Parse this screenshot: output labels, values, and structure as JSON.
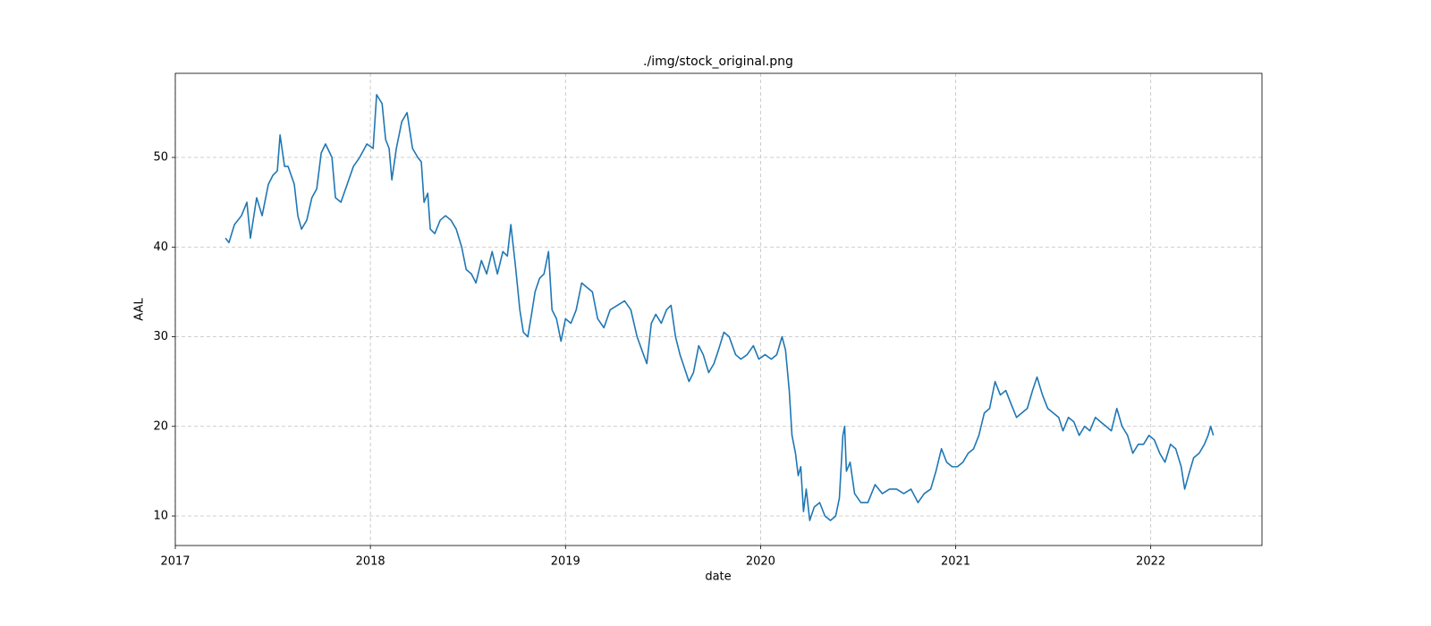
{
  "chart_data": {
    "type": "line",
    "title": "./img/stock_original.png",
    "xlabel": "date",
    "ylabel": "AAL",
    "x": [
      2017.257,
      2017.275,
      2017.303,
      2017.339,
      2017.367,
      2017.385,
      2017.417,
      2017.445,
      2017.477,
      2017.5,
      2017.523,
      2017.537,
      2017.56,
      2017.578,
      2017.61,
      2017.628,
      2017.647,
      2017.674,
      2017.7,
      2017.725,
      2017.748,
      2017.77,
      2017.803,
      2017.821,
      2017.849,
      2017.881,
      2017.913,
      2017.945,
      2017.982,
      2018.014,
      2018.032,
      2018.06,
      2018.078,
      2018.096,
      2018.11,
      2018.133,
      2018.161,
      2018.188,
      2018.216,
      2018.243,
      2018.261,
      2018.275,
      2018.294,
      2018.307,
      2018.33,
      2018.358,
      2018.385,
      2018.413,
      2018.44,
      2018.468,
      2018.491,
      2018.518,
      2018.541,
      2018.569,
      2018.596,
      2018.624,
      2018.651,
      2018.679,
      2018.702,
      2018.72,
      2018.743,
      2018.766,
      2018.784,
      2018.807,
      2018.826,
      2018.844,
      2018.867,
      2018.89,
      2018.913,
      2018.931,
      2018.954,
      2018.977,
      2019.0,
      2019.028,
      2019.055,
      2019.083,
      2019.11,
      2019.138,
      2019.165,
      2019.197,
      2019.229,
      2019.266,
      2019.303,
      2019.335,
      2019.367,
      2019.4,
      2019.417,
      2019.44,
      2019.463,
      2019.491,
      2019.518,
      2019.541,
      2019.564,
      2019.587,
      2019.61,
      2019.633,
      2019.656,
      2019.683,
      2019.706,
      2019.734,
      2019.761,
      2019.784,
      2019.812,
      2019.839,
      2019.872,
      2019.899,
      2019.931,
      2019.963,
      2019.991,
      2020.023,
      2020.055,
      2020.083,
      2020.11,
      2020.128,
      2020.147,
      2020.161,
      2020.179,
      2020.193,
      2020.206,
      2020.22,
      2020.234,
      2020.252,
      2020.275,
      2020.303,
      2020.33,
      2020.358,
      2020.385,
      2020.404,
      2020.422,
      2020.431,
      2020.44,
      2020.459,
      2020.482,
      2020.514,
      2020.55,
      2020.587,
      2020.624,
      2020.661,
      2020.697,
      2020.734,
      2020.771,
      2020.807,
      2020.839,
      2020.872,
      2020.899,
      2020.927,
      2020.954,
      2020.982,
      2021.009,
      2021.037,
      2021.064,
      2021.092,
      2021.119,
      2021.147,
      2021.174,
      2021.202,
      2021.229,
      2021.257,
      2021.284,
      2021.312,
      2021.339,
      2021.367,
      2021.394,
      2021.417,
      2021.445,
      2021.472,
      2021.5,
      2021.528,
      2021.55,
      2021.578,
      2021.606,
      2021.633,
      2021.661,
      2021.688,
      2021.716,
      2021.743,
      2021.771,
      2021.798,
      2021.826,
      2021.853,
      2021.881,
      2021.908,
      2021.936,
      2021.963,
      2021.991,
      2022.018,
      2022.046,
      2022.073,
      2022.101,
      2022.128,
      2022.156,
      2022.174,
      2022.193,
      2022.22,
      2022.248,
      2022.275,
      2022.294,
      2022.307,
      2022.321
    ],
    "values": [
      41,
      40.5,
      42.5,
      43.5,
      45,
      41,
      45.5,
      43.5,
      47,
      48,
      48.5,
      52.5,
      49,
      49,
      47,
      43.5,
      42,
      43,
      45.5,
      46.5,
      50.5,
      51.5,
      50,
      45.5,
      45,
      47,
      49,
      50,
      51.5,
      51,
      57,
      56,
      52,
      51,
      47.5,
      51,
      54,
      55,
      51,
      50,
      49.5,
      45,
      46,
      42,
      41.5,
      43,
      43.5,
      43,
      42,
      40,
      37.5,
      37,
      36,
      38.5,
      37,
      39.5,
      37,
      39.5,
      39,
      42.5,
      38,
      33,
      30.5,
      30,
      32.5,
      35,
      36.5,
      37,
      39.5,
      33,
      32,
      29.5,
      32,
      31.5,
      33,
      36,
      35.5,
      35,
      32,
      31,
      33,
      33.5,
      34,
      33,
      30,
      28,
      27,
      31.5,
      32.5,
      31.5,
      33,
      33.5,
      30,
      28,
      26.5,
      25,
      26,
      29,
      28,
      26,
      27,
      28.5,
      30.5,
      30,
      28,
      27.5,
      28,
      29,
      27.5,
      28,
      27.5,
      28,
      30,
      28.5,
      24,
      19,
      17,
      14.5,
      15.5,
      10.5,
      13,
      9.5,
      11,
      11.5,
      10,
      9.5,
      10,
      12,
      19,
      20,
      15,
      16,
      12.5,
      11.5,
      11.5,
      13.5,
      12.5,
      13,
      13,
      12.5,
      13,
      11.5,
      12.5,
      13,
      15,
      17.5,
      16,
      15.5,
      15.5,
      16,
      17,
      17.5,
      19,
      21.5,
      22,
      25,
      23.5,
      24,
      22.5,
      21,
      21.5,
      22,
      24,
      25.5,
      23.5,
      22,
      21.5,
      21,
      19.5,
      21,
      20.5,
      19,
      20,
      19.5,
      21,
      20.5,
      20,
      19.5,
      22,
      20,
      19,
      17,
      18,
      18,
      19,
      18.5,
      17,
      16,
      18,
      17.5,
      15.5,
      13,
      14.5,
      16.5,
      17,
      18,
      19,
      20,
      19
    ],
    "color": "#1f77b4",
    "xlim": [
      2017,
      2022.57
    ],
    "xticks": [
      2017,
      2018,
      2019,
      2020,
      2021,
      2022
    ],
    "ylim": [
      6.71,
      59.38
    ],
    "yticks": [
      10,
      20,
      30,
      40,
      50
    ],
    "grid": true
  }
}
